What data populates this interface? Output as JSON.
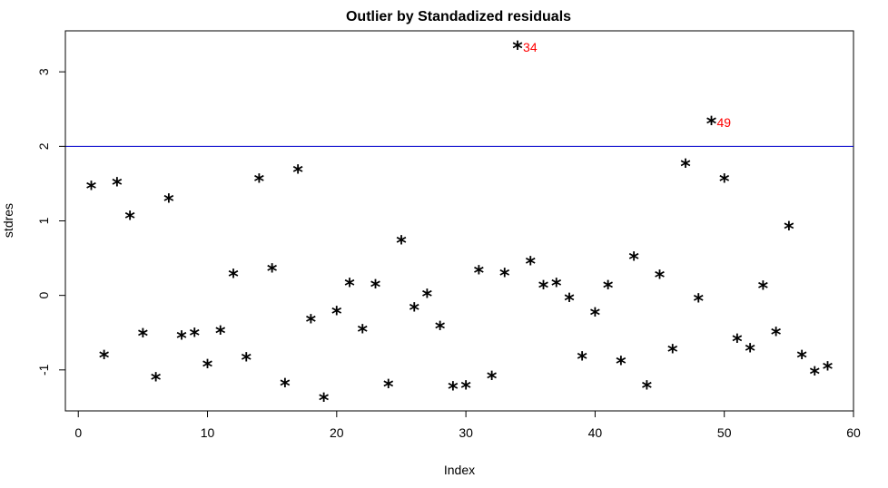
{
  "chart_data": {
    "type": "scatter",
    "title": "Outlier by Standadized residuals",
    "xlabel": "Index",
    "ylabel": "stdres",
    "xlim": [
      -1,
      60
    ],
    "ylim": [
      -1.55,
      3.55
    ],
    "x_ticks": [
      0,
      10,
      20,
      30,
      40,
      50,
      60
    ],
    "y_ticks": [
      -1,
      0,
      1,
      2,
      3
    ],
    "marker": "*",
    "grid": false,
    "reference_line": {
      "y": 2,
      "color": "#0000cc"
    },
    "points": [
      {
        "x": 1,
        "y": 1.45
      },
      {
        "x": 2,
        "y": -0.82
      },
      {
        "x": 3,
        "y": 1.5
      },
      {
        "x": 4,
        "y": 1.05
      },
      {
        "x": 5,
        "y": -0.53
      },
      {
        "x": 6,
        "y": -1.12
      },
      {
        "x": 7,
        "y": 1.28
      },
      {
        "x": 8,
        "y": -0.56
      },
      {
        "x": 9,
        "y": -0.52
      },
      {
        "x": 10,
        "y": -0.94
      },
      {
        "x": 11,
        "y": -0.49
      },
      {
        "x": 12,
        "y": 0.27
      },
      {
        "x": 13,
        "y": -0.85
      },
      {
        "x": 14,
        "y": 1.55
      },
      {
        "x": 15,
        "y": 0.34
      },
      {
        "x": 16,
        "y": -1.2
      },
      {
        "x": 17,
        "y": 1.67
      },
      {
        "x": 18,
        "y": -0.34
      },
      {
        "x": 19,
        "y": -1.39
      },
      {
        "x": 20,
        "y": -0.23
      },
      {
        "x": 21,
        "y": 0.15
      },
      {
        "x": 22,
        "y": -0.47
      },
      {
        "x": 23,
        "y": 0.13
      },
      {
        "x": 24,
        "y": -1.21
      },
      {
        "x": 25,
        "y": 0.72
      },
      {
        "x": 26,
        "y": -0.18
      },
      {
        "x": 27,
        "y": 0.0
      },
      {
        "x": 28,
        "y": -0.43
      },
      {
        "x": 29,
        "y": -1.24
      },
      {
        "x": 30,
        "y": -1.23
      },
      {
        "x": 31,
        "y": 0.32
      },
      {
        "x": 32,
        "y": -1.1
      },
      {
        "x": 33,
        "y": 0.28
      },
      {
        "x": 34,
        "y": 3.33
      },
      {
        "x": 35,
        "y": 0.44
      },
      {
        "x": 36,
        "y": 0.12
      },
      {
        "x": 37,
        "y": 0.15
      },
      {
        "x": 38,
        "y": -0.05
      },
      {
        "x": 39,
        "y": -0.84
      },
      {
        "x": 40,
        "y": -0.25
      },
      {
        "x": 41,
        "y": 0.12
      },
      {
        "x": 42,
        "y": -0.9
      },
      {
        "x": 43,
        "y": 0.5
      },
      {
        "x": 44,
        "y": -1.23
      },
      {
        "x": 45,
        "y": 0.26
      },
      {
        "x": 46,
        "y": -0.74
      },
      {
        "x": 47,
        "y": 1.75
      },
      {
        "x": 48,
        "y": -0.06
      },
      {
        "x": 49,
        "y": 2.32
      },
      {
        "x": 50,
        "y": 1.55
      },
      {
        "x": 51,
        "y": -0.6
      },
      {
        "x": 52,
        "y": -0.73
      },
      {
        "x": 53,
        "y": 0.11
      },
      {
        "x": 54,
        "y": -0.51
      },
      {
        "x": 55,
        "y": 0.91
      },
      {
        "x": 56,
        "y": -0.82
      },
      {
        "x": 57,
        "y": -1.04
      },
      {
        "x": 58,
        "y": -0.97
      }
    ],
    "annotations": [
      {
        "x": 34,
        "y": 3.33,
        "text": "34",
        "color": "#ff0000"
      },
      {
        "x": 49,
        "y": 2.32,
        "text": "49",
        "color": "#ff0000"
      }
    ]
  }
}
